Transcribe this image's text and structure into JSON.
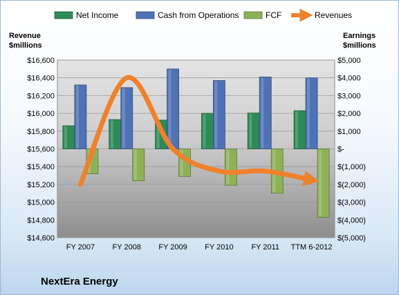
{
  "chart_data": {
    "type": "bar",
    "title": "NextEra Energy",
    "categories": [
      "FY 2007",
      "FY 2008",
      "FY 2009",
      "FY 2010",
      "FY 2011",
      "TTM 6-2012"
    ],
    "series": [
      {
        "name": "Net Income",
        "axis": "right",
        "type": "bar",
        "color": "#2e8b57",
        "values": [
          1300,
          1650,
          1620,
          2000,
          2020,
          2150
        ]
      },
      {
        "name": "Cash from Operations",
        "axis": "right",
        "type": "bar",
        "color": "#4f72b5",
        "values": [
          3600,
          3450,
          4500,
          3850,
          4050,
          4000
        ]
      },
      {
        "name": "FCF",
        "axis": "right",
        "type": "bar",
        "color": "#8db158",
        "values": [
          -1400,
          -1800,
          -1550,
          -2050,
          -2500,
          -3850
        ]
      },
      {
        "name": "Revenues",
        "axis": "left",
        "type": "line",
        "color": "#f0812c",
        "values": [
          15200,
          16400,
          15600,
          15350,
          15350,
          15250
        ]
      }
    ],
    "left_axis": {
      "title_line1": "Revenue",
      "title_line2": "$millions",
      "ylim": [
        14600,
        16600
      ],
      "ticks": [
        14600,
        14800,
        15000,
        15200,
        15400,
        15600,
        15800,
        16000,
        16200,
        16400,
        16600
      ],
      "tick_labels": [
        "$14,600",
        "$14,800",
        "$15,000",
        "$15,200",
        "$15,400",
        "$15,600",
        "$15,800",
        "$16,000",
        "$16,200",
        "$16,400",
        "$16,600"
      ]
    },
    "right_axis": {
      "title_line1": "Earnings",
      "title_line2": "$millions",
      "ylim": [
        -5000,
        5000
      ],
      "ticks": [
        -5000,
        -4000,
        -3000,
        -2000,
        -1000,
        0,
        1000,
        2000,
        3000,
        4000,
        5000
      ],
      "tick_labels": [
        "$(5,000)",
        "$(4,000)",
        "$(3,000)",
        "$(2,000)",
        "$(1,000)",
        "$-",
        "$1,000",
        "$2,000",
        "$3,000",
        "$4,000",
        "$5,000"
      ]
    },
    "grid": true,
    "legend": "top",
    "legend_items": [
      {
        "label": "Net Income",
        "color": "#2e8b57",
        "kind": "box"
      },
      {
        "label": "Cash from Operations",
        "color": "#4f72b5",
        "kind": "box"
      },
      {
        "label": "FCF",
        "color": "#8db158",
        "kind": "box"
      },
      {
        "label": "Revenues",
        "color": "#f0812c",
        "kind": "arrow"
      }
    ]
  },
  "company_name": "NextEra Energy"
}
